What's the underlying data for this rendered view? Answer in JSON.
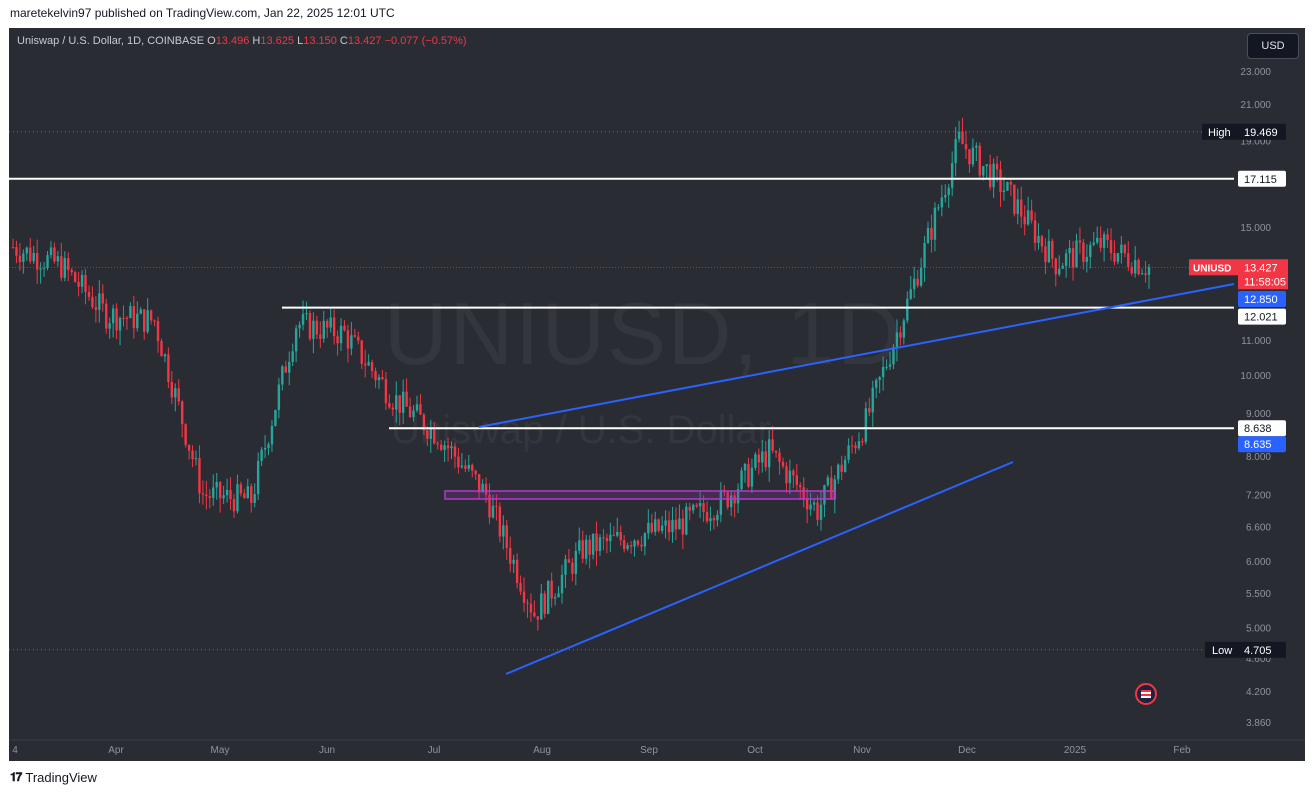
{
  "header": {
    "published": "maretekelvin97 published on TradingView.com, Jan 22, 2025 12:01 UTC"
  },
  "legend": {
    "symbol": "Uniswap / U.S. Dollar, 1D, COINBASE",
    "o_label": "O",
    "o": "13.496",
    "h_label": "H",
    "h": "13.625",
    "l_label": "L",
    "l": "13.150",
    "c_label": "C",
    "c": "13.427",
    "change": "−0.077 (−0.57%)"
  },
  "currency_button": "USD",
  "watermark": {
    "symbol": "UNIUSD, 1D",
    "name": "Uniswap / U.S. Dollar"
  },
  "footer": {
    "brand": "TradingView"
  },
  "colors": {
    "background": "#2a2c34",
    "up": "#26a69a",
    "down": "#f23645",
    "trendline": "#2962ff",
    "level": "#ffffff",
    "zone": "#9c27b0"
  },
  "chart_data": {
    "type": "candlestick",
    "symbol": "UNIUSD",
    "timeframe": "1D",
    "exchange": "COINBASE",
    "y_axis": {
      "scale": "log",
      "ticks": [
        "23.000",
        "21.000",
        "19.000",
        "17.000",
        "15.000",
        "13.000",
        "11.000",
        "10.000",
        "9.000",
        "8.000",
        "7.200",
        "6.600",
        "6.000",
        "5.500",
        "5.000",
        "4.600",
        "4.200",
        "3.860"
      ]
    },
    "x_axis": {
      "ticks": [
        "4",
        "Apr",
        "May",
        "Jun",
        "Jul",
        "Aug",
        "Sep",
        "Oct",
        "Nov",
        "Dec",
        "2025",
        "Feb"
      ]
    },
    "price_labels": {
      "high": {
        "label": "High",
        "value": "19.469"
      },
      "low": {
        "label": "Low",
        "value": "4.705"
      },
      "last": {
        "symbol": "UNIUSD",
        "value": "13.427",
        "countdown": "11:58:05"
      },
      "trend_top": "12.850",
      "support": "12.021",
      "level_mid": "8.638",
      "trend_mid": "8.635",
      "resistance_top": "17.115"
    },
    "series": [
      {
        "name": "close",
        "x": [
          "Mar 01",
          "Mar 15",
          "Apr 01",
          "Apr 15",
          "May 01",
          "May 15",
          "Jun 01",
          "Jun 15",
          "Jul 01",
          "Jul 15",
          "Aug 01",
          "Aug 05",
          "Aug 15",
          "Sep 01",
          "Sep 15",
          "Oct 01",
          "Oct 15",
          "Nov 01",
          "Nov 15",
          "Dec 01",
          "Dec 10",
          "Dec 20",
          "Jan 01",
          "Jan 10",
          "Jan 22"
        ],
        "values": [
          14.2,
          13.5,
          11.8,
          11.6,
          7.2,
          7.1,
          11.5,
          11.2,
          9.4,
          8.5,
          7.2,
          5.2,
          6.2,
          6.4,
          6.6,
          7.1,
          8.1,
          6.9,
          8.8,
          12.5,
          19.0,
          16.5,
          13.6,
          14.3,
          13.427
        ]
      }
    ]
  }
}
